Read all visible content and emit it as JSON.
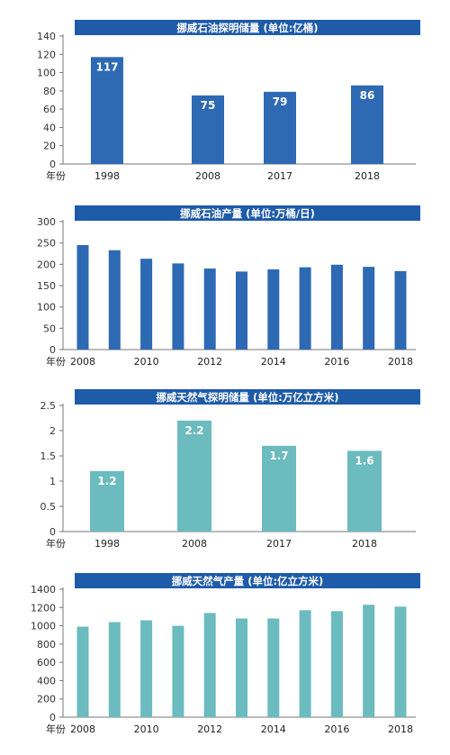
{
  "chart_data": [
    {
      "type": "bar",
      "title": "挪威石油探明储量  (单位:亿桶)",
      "xlabel": "年份",
      "categories": [
        "1998",
        "2008",
        "2017",
        "2018"
      ],
      "values": [
        117,
        75,
        79,
        86
      ],
      "data_labels": [
        "117",
        "75",
        "79",
        "86"
      ],
      "yticks": [
        "0",
        "20",
        "40",
        "60",
        "80",
        "100",
        "120",
        "140"
      ],
      "ylim": [
        0,
        140
      ],
      "color": "#2E69B3"
    },
    {
      "type": "bar",
      "title": "挪威石油产量  (单位:万桶/日)",
      "xlabel": "年份",
      "categories": [
        "2008",
        "2009",
        "2010",
        "2011",
        "2012",
        "2013",
        "2014",
        "2015",
        "2016",
        "2017",
        "2018"
      ],
      "tick_labels": [
        "2008",
        "2010",
        "2012",
        "2014",
        "2016",
        "2018"
      ],
      "values": [
        245,
        233,
        213,
        202,
        190,
        183,
        188,
        193,
        199,
        194,
        184
      ],
      "yticks": [
        "0",
        "50",
        "100",
        "150",
        "200",
        "250",
        "300"
      ],
      "ylim": [
        0,
        300
      ],
      "color": "#2E69B3"
    },
    {
      "type": "bar",
      "title": "挪威天然气探明储量  (单位:万亿立方米)",
      "xlabel": "年份",
      "categories": [
        "1998",
        "2008",
        "2017",
        "2018"
      ],
      "values": [
        1.2,
        2.2,
        1.7,
        1.6
      ],
      "data_labels": [
        "1.2",
        "2.2",
        "1.7",
        "1.6"
      ],
      "yticks": [
        "0",
        "0.5",
        "1",
        "1.5",
        "2",
        "2.5"
      ],
      "ylim": [
        0,
        2.5
      ],
      "color": "#6BBBBF"
    },
    {
      "type": "bar",
      "title": "挪威天然气产量  (单位:亿立方米)",
      "xlabel": "年份",
      "categories": [
        "2008",
        "2009",
        "2010",
        "2011",
        "2012",
        "2013",
        "2014",
        "2015",
        "2016",
        "2017",
        "2018"
      ],
      "tick_labels": [
        "2008",
        "2010",
        "2012",
        "2014",
        "2016",
        "2018"
      ],
      "values": [
        990,
        1040,
        1060,
        1000,
        1140,
        1080,
        1080,
        1170,
        1160,
        1230,
        1210
      ],
      "yticks": [
        "0",
        "200",
        "400",
        "600",
        "800",
        "1000",
        "1200",
        "1400"
      ],
      "ylim": [
        0,
        1400
      ],
      "color": "#6BBBBF"
    }
  ],
  "title_bar_color": "#1E5BA8"
}
